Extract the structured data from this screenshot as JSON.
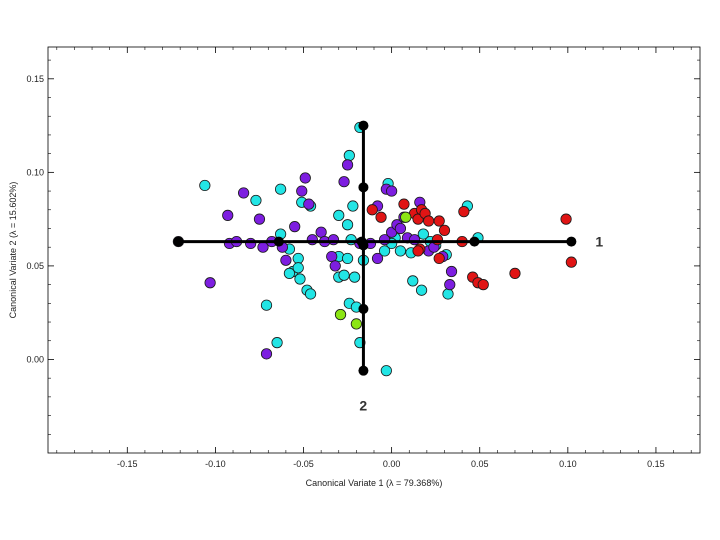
{
  "chart_data": {
    "type": "scatter",
    "title": "",
    "xlabel": "Canonical Variate 1 (λ = 79.368%)",
    "ylabel": "Canonical Variate 2 (λ = 15.602%)",
    "xlim": [
      -0.195,
      0.175
    ],
    "ylim": [
      -0.05,
      0.167
    ],
    "xticks": [
      -0.15,
      -0.1,
      -0.05,
      0.0,
      0.05,
      0.1,
      0.15
    ],
    "xtick_labels": [
      "-0.15",
      "-0.10",
      "-0.05",
      "0.00",
      "0.05",
      "0.10",
      "0.15"
    ],
    "yticks": [
      0.0,
      0.05,
      0.1,
      0.15
    ],
    "ytick_labels": [
      "0.00",
      "0.05",
      "0.10",
      "0.15"
    ],
    "grid": false,
    "legend": "none",
    "series": [
      {
        "color": "#22e5e5",
        "points": [
          [
            -0.106,
            0.093
          ],
          [
            -0.077,
            0.085
          ],
          [
            -0.063,
            0.091
          ],
          [
            -0.051,
            0.084
          ],
          [
            -0.046,
            0.082
          ],
          [
            -0.063,
            0.067
          ],
          [
            -0.058,
            0.059
          ],
          [
            -0.056,
            0.047
          ],
          [
            -0.052,
            0.043
          ],
          [
            -0.048,
            0.037
          ],
          [
            -0.046,
            0.035
          ],
          [
            -0.053,
            0.054
          ],
          [
            -0.058,
            0.046
          ],
          [
            -0.071,
            0.029
          ],
          [
            -0.065,
            0.009
          ],
          [
            -0.053,
            0.049
          ],
          [
            -0.03,
            0.077
          ],
          [
            -0.024,
            0.109
          ],
          [
            -0.018,
            0.124
          ],
          [
            -0.022,
            0.082
          ],
          [
            -0.025,
            0.072
          ],
          [
            -0.03,
            0.055
          ],
          [
            -0.03,
            0.044
          ],
          [
            -0.027,
            0.045
          ],
          [
            -0.025,
            0.054
          ],
          [
            -0.021,
            0.044
          ],
          [
            -0.029,
            0.024
          ],
          [
            -0.024,
            0.03
          ],
          [
            -0.02,
            0.028
          ],
          [
            -0.016,
            0.053
          ],
          [
            -0.018,
            0.009
          ],
          [
            -0.002,
            0.094
          ],
          [
            0.002,
            0.065
          ],
          [
            0.005,
            0.058
          ],
          [
            0.011,
            0.057
          ],
          [
            0.018,
            0.067
          ],
          [
            0.022,
            0.063
          ],
          [
            0.012,
            0.042
          ],
          [
            0.017,
            0.037
          ],
          [
            0.025,
            0.061
          ],
          [
            0.031,
            0.056
          ],
          [
            0.032,
            0.035
          ],
          [
            0.043,
            0.082
          ],
          [
            0.049,
            0.065
          ],
          [
            -0.003,
            -0.006
          ],
          [
            -0.004,
            0.058
          ],
          [
            0.0,
            0.062
          ],
          [
            -0.023,
            0.064
          ]
        ]
      },
      {
        "color": "#7d1ee0",
        "points": [
          [
            -0.121,
            0.063
          ],
          [
            -0.093,
            0.077
          ],
          [
            -0.092,
            0.062
          ],
          [
            -0.088,
            0.063
          ],
          [
            -0.084,
            0.089
          ],
          [
            -0.075,
            0.075
          ],
          [
            -0.073,
            0.06
          ],
          [
            -0.068,
            0.063
          ],
          [
            -0.062,
            0.06
          ],
          [
            -0.06,
            0.053
          ],
          [
            -0.055,
            0.071
          ],
          [
            -0.051,
            0.09
          ],
          [
            -0.049,
            0.097
          ],
          [
            -0.047,
            0.083
          ],
          [
            -0.045,
            0.064
          ],
          [
            -0.04,
            0.068
          ],
          [
            -0.038,
            0.063
          ],
          [
            -0.034,
            0.055
          ],
          [
            -0.033,
            0.064
          ],
          [
            -0.027,
            0.095
          ],
          [
            -0.025,
            0.104
          ],
          [
            -0.018,
            0.062
          ],
          [
            -0.012,
            0.062
          ],
          [
            -0.008,
            0.054
          ],
          [
            -0.008,
            0.082
          ],
          [
            -0.003,
            0.091
          ],
          [
            -0.004,
            0.064
          ],
          [
            0.0,
            0.068
          ],
          [
            0.003,
            0.072
          ],
          [
            0.005,
            0.07
          ],
          [
            0.007,
            0.076
          ],
          [
            0.009,
            0.065
          ],
          [
            0.013,
            0.064
          ],
          [
            0.016,
            0.084
          ],
          [
            0.021,
            0.058
          ],
          [
            0.024,
            0.06
          ],
          [
            0.029,
            0.055
          ],
          [
            0.033,
            0.04
          ],
          [
            0.034,
            0.047
          ],
          [
            -0.103,
            0.041
          ],
          [
            -0.08,
            0.062
          ],
          [
            -0.071,
            0.003
          ],
          [
            -0.032,
            0.05
          ],
          [
            0.0,
            0.09
          ]
        ]
      },
      {
        "color": "#e01414",
        "points": [
          [
            -0.011,
            0.08
          ],
          [
            -0.006,
            0.076
          ],
          [
            0.007,
            0.083
          ],
          [
            0.013,
            0.078
          ],
          [
            0.015,
            0.075
          ],
          [
            0.017,
            0.08
          ],
          [
            0.019,
            0.078
          ],
          [
            0.021,
            0.074
          ],
          [
            0.026,
            0.064
          ],
          [
            0.027,
            0.054
          ],
          [
            0.027,
            0.074
          ],
          [
            0.03,
            0.069
          ],
          [
            0.016,
            0.059
          ],
          [
            0.04,
            0.063
          ],
          [
            0.041,
            0.079
          ],
          [
            0.046,
            0.044
          ],
          [
            0.049,
            0.041
          ],
          [
            0.052,
            0.04
          ],
          [
            0.07,
            0.046
          ],
          [
            0.099,
            0.075
          ],
          [
            0.102,
            0.052
          ],
          [
            0.015,
            0.058
          ]
        ]
      },
      {
        "color": "#8ce614",
        "points": [
          [
            0.008,
            0.076
          ],
          [
            -0.029,
            0.024
          ],
          [
            -0.02,
            0.019
          ]
        ]
      }
    ],
    "centroid_lines": [
      {
        "label": "1",
        "color": "#000000",
        "from": [
          -0.121,
          0.063
        ],
        "to": [
          0.102,
          0.063
        ],
        "markers": [
          [
            -0.121,
            0.063
          ],
          [
            -0.064,
            0.063
          ],
          [
            -0.017,
            0.063
          ],
          [
            0.047,
            0.063
          ],
          [
            0.102,
            0.063
          ]
        ]
      },
      {
        "label": "2",
        "color": "#000000",
        "from": [
          -0.016,
          0.125
        ],
        "to": [
          -0.016,
          -0.006
        ],
        "markers": [
          [
            -0.016,
            0.125
          ],
          [
            -0.016,
            0.092
          ],
          [
            -0.016,
            0.061
          ],
          [
            -0.016,
            0.027
          ],
          [
            -0.016,
            -0.006
          ]
        ]
      }
    ]
  }
}
